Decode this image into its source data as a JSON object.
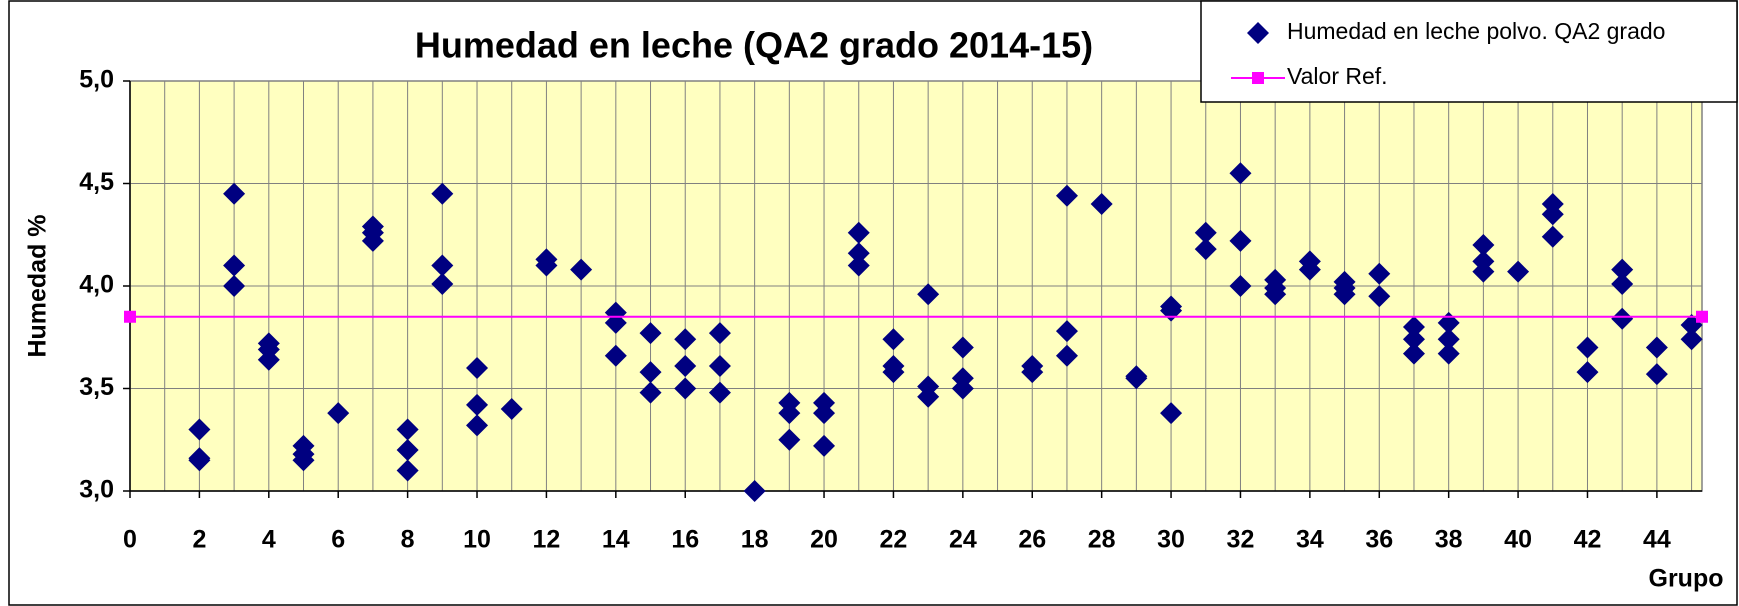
{
  "chart_data": {
    "type": "scatter",
    "title": "Humedad en leche (QA2 grado 2014-15)",
    "x_label": "Grupo",
    "y_label": "Humedad %",
    "xlim": [
      0,
      45.3
    ],
    "ylim": [
      3,
      5
    ],
    "xticks": [
      0,
      2,
      4,
      6,
      8,
      10,
      12,
      14,
      16,
      18,
      20,
      22,
      24,
      26,
      28,
      30,
      32,
      34,
      36,
      38,
      40,
      42,
      44
    ],
    "yticks": [
      {
        "value": 3,
        "label": "3,0"
      },
      {
        "value": 3.5,
        "label": "3,5"
      },
      {
        "value": 4,
        "label": "4,0"
      },
      {
        "value": 4.5,
        "label": "4,5"
      },
      {
        "value": 5,
        "label": "5,0"
      }
    ],
    "grid": true,
    "x_grid_step": 1,
    "background": "#ffffc0",
    "legend": "top-right",
    "series": [
      {
        "name": "Humedad en leche polvo. QA2 grado",
        "color": "#000080",
        "marker": "diamond",
        "x": [
          2,
          2,
          2,
          3,
          3,
          3,
          4,
          4,
          4,
          5,
          5,
          5,
          6,
          7,
          7,
          7,
          8,
          8,
          8,
          9,
          9,
          9,
          10,
          10,
          10,
          11,
          12,
          12,
          13,
          14,
          14,
          14,
          15,
          15,
          15,
          16,
          16,
          16,
          17,
          17,
          17,
          18,
          19,
          19,
          19,
          20,
          20,
          20,
          21,
          21,
          21,
          22,
          22,
          22,
          23,
          23,
          23,
          24,
          24,
          24,
          26,
          26,
          27,
          27,
          27,
          28,
          29,
          29,
          30,
          30,
          30,
          31,
          31,
          32,
          32,
          32,
          33,
          33,
          33,
          34,
          34,
          35,
          35,
          35,
          36,
          36,
          37,
          37,
          37,
          38,
          38,
          38,
          39,
          39,
          39,
          40,
          41,
          41,
          41,
          42,
          42,
          43,
          43,
          43,
          44,
          44,
          45,
          45
        ],
        "values": [
          3.3,
          3.16,
          3.15,
          4.45,
          4.1,
          4.0,
          3.72,
          3.69,
          3.64,
          3.22,
          3.18,
          3.15,
          3.38,
          4.29,
          4.26,
          4.22,
          3.3,
          3.2,
          3.1,
          4.45,
          4.1,
          4.01,
          3.6,
          3.42,
          3.32,
          3.4,
          4.13,
          4.1,
          4.08,
          3.87,
          3.82,
          3.66,
          3.77,
          3.58,
          3.48,
          3.74,
          3.61,
          3.5,
          3.77,
          3.61,
          3.48,
          3.0,
          3.43,
          3.38,
          3.25,
          3.43,
          3.38,
          3.22,
          4.26,
          4.16,
          4.1,
          3.74,
          3.61,
          3.58,
          3.96,
          3.51,
          3.46,
          3.7,
          3.55,
          3.5,
          3.61,
          3.58,
          4.44,
          3.78,
          3.66,
          4.4,
          3.56,
          3.55,
          3.9,
          3.88,
          3.38,
          4.26,
          4.18,
          4.55,
          4.22,
          4.0,
          4.03,
          3.99,
          3.96,
          4.12,
          4.08,
          4.02,
          3.99,
          3.96,
          4.06,
          3.95,
          3.8,
          3.74,
          3.67,
          3.82,
          3.74,
          3.67,
          4.2,
          4.12,
          4.07,
          4.07,
          4.4,
          4.35,
          4.24,
          3.7,
          3.58,
          4.08,
          4.01,
          3.84,
          3.7,
          3.57,
          3.81,
          3.74
        ]
      },
      {
        "name": "Valor Ref.",
        "color": "#ff00ff",
        "marker": "square",
        "line": true,
        "x": [
          0,
          45.3
        ],
        "values": [
          3.85,
          3.85
        ]
      }
    ]
  }
}
